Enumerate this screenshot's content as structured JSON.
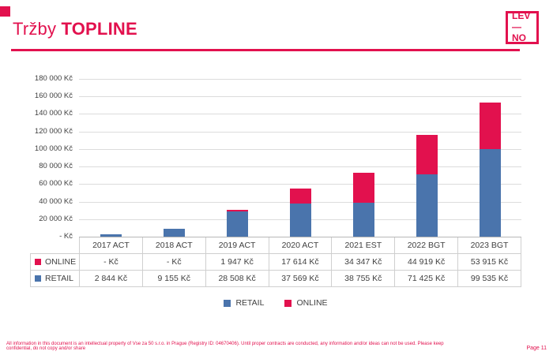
{
  "header": {
    "title_regular": "Tržby",
    "title_bold": "TOPLINE"
  },
  "logo": {
    "line1": "LEV—",
    "line2": "NO"
  },
  "colors": {
    "accent": "#e2114e",
    "retail_blue": "#4a74ac",
    "online_red": "#e2114e"
  },
  "chart_data": {
    "type": "bar",
    "stacked": true,
    "title": "Tržby TOPLINE",
    "categories": [
      "2017 ACT",
      "2018 ACT",
      "2019 ACT",
      "2020 ACT",
      "2021 EST",
      "2022 BGT",
      "2023 BGT"
    ],
    "series": [
      {
        "name": "RETAIL",
        "color": "#4a74ac",
        "values": [
          2844,
          9155,
          28508,
          37569,
          38755,
          71425,
          99535
        ],
        "labels": [
          "2 844 Kč",
          "9 155 Kč",
          "28 508 Kč",
          "37 569 Kč",
          "38 755 Kč",
          "71 425 Kč",
          "99 535 Kč"
        ]
      },
      {
        "name": "ONLINE",
        "color": "#e2114e",
        "values": [
          0,
          0,
          1947,
          17614,
          34347,
          44919,
          53915
        ],
        "labels": [
          "- Kč",
          "- Kč",
          "1 947 Kč",
          "17 614 Kč",
          "34 347 Kč",
          "44 919 Kč",
          "53 915 Kč"
        ]
      }
    ],
    "table_row_order": [
      "ONLINE",
      "RETAIL"
    ],
    "y_ticks": [
      "180 000 Kč",
      "160 000 Kč",
      "140 000 Kč",
      "120 000 Kč",
      "100 000 Kč",
      "80 000 Kč",
      "60 000 Kč",
      "40 000 Kč",
      "20 000 Kč",
      "- Kč"
    ],
    "ylim": [
      0,
      180000
    ],
    "grid": true,
    "legend": [
      "RETAIL",
      "ONLINE"
    ],
    "legend_position": "bottom"
  },
  "footer": {
    "disclaimer": "All information in this document is an intellectual property of Vse za 50 s.r.o. in Prague (Registry ID: 04670406). Until proper contracts are conducted, any information and/or ideas can not be used. Please keep confidential, do not copy and/or share",
    "page": "Page 11"
  }
}
